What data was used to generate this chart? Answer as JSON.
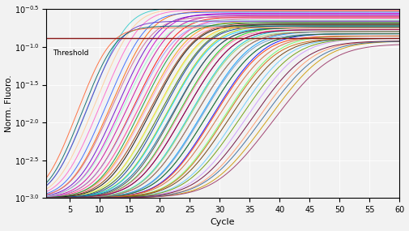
{
  "xlabel": "Cycle",
  "ylabel": "Norm. Fluoro.",
  "xlim": [
    1,
    60
  ],
  "ylim": [
    0.001,
    0.316
  ],
  "x_ticks": [
    5,
    10,
    15,
    20,
    25,
    30,
    35,
    40,
    45,
    50,
    55,
    60
  ],
  "y_ticks_exp": [
    -3.0,
    -2.5,
    -2.0,
    -1.5,
    -1.0,
    -0.5
  ],
  "threshold_value": 0.13,
  "threshold_color": "#8B1A1A",
  "threshold_label": "Threshold",
  "background_color": "#f2f2f2",
  "grid_color": "#ffffff",
  "colors": [
    "#cc00cc",
    "#ff0000",
    "#ff6600",
    "#ff9900",
    "#ffcc00",
    "#99cc00",
    "#00cc00",
    "#00cccc",
    "#0099ff",
    "#0000ff",
    "#6600cc",
    "#cc0099",
    "#ff3399",
    "#993300",
    "#336600",
    "#006699",
    "#660099",
    "#cc3300",
    "#009966",
    "#3366ff",
    "#ff66cc",
    "#66ff66",
    "#66ccff",
    "#ffcc99",
    "#cc99ff",
    "#ff9966",
    "#99ffcc",
    "#9999ff",
    "#ff99cc",
    "#ccff99",
    "#00ccff",
    "#ff6699",
    "#99cc66",
    "#6699cc",
    "#cc6699",
    "#ff3300",
    "#33cccc",
    "#cc6600",
    "#6633cc",
    "#cc9900",
    "#009933",
    "#003399",
    "#990033",
    "#336633",
    "#663300",
    "#000000",
    "#444444",
    "#888888",
    "#cc6633",
    "#669900",
    "#006666",
    "#660033",
    "#336699",
    "#993366",
    "#ff6633"
  ],
  "curve_groups": [
    {
      "ct": 20,
      "plateau": 0.28,
      "base": 0.001,
      "slope": 0.45,
      "color_idx": 0
    },
    {
      "ct": 22,
      "plateau": 0.25,
      "base": 0.001,
      "slope": 0.43,
      "color_idx": 1
    },
    {
      "ct": 18,
      "plateau": 0.3,
      "base": 0.001,
      "slope": 0.47,
      "color_idx": 2
    },
    {
      "ct": 24,
      "plateau": 0.22,
      "base": 0.001,
      "slope": 0.41,
      "color_idx": 3
    },
    {
      "ct": 26,
      "plateau": 0.2,
      "base": 0.001,
      "slope": 0.4,
      "color_idx": 4
    },
    {
      "ct": 28,
      "plateau": 0.19,
      "base": 0.001,
      "slope": 0.39,
      "color_idx": 5
    },
    {
      "ct": 30,
      "plateau": 0.18,
      "base": 0.001,
      "slope": 0.38,
      "color_idx": 6
    },
    {
      "ct": 32,
      "plateau": 0.17,
      "base": 0.001,
      "slope": 0.37,
      "color_idx": 7
    },
    {
      "ct": 34,
      "plateau": 0.16,
      "base": 0.001,
      "slope": 0.36,
      "color_idx": 8
    },
    {
      "ct": 36,
      "plateau": 0.15,
      "base": 0.001,
      "slope": 0.35,
      "color_idx": 9
    },
    {
      "ct": 19,
      "plateau": 0.27,
      "base": 0.001,
      "slope": 0.46,
      "color_idx": 10
    },
    {
      "ct": 21,
      "plateau": 0.26,
      "base": 0.001,
      "slope": 0.44,
      "color_idx": 11
    },
    {
      "ct": 23,
      "plateau": 0.24,
      "base": 0.001,
      "slope": 0.42,
      "color_idx": 12
    },
    {
      "ct": 25,
      "plateau": 0.21,
      "base": 0.001,
      "slope": 0.4,
      "color_idx": 13
    },
    {
      "ct": 27,
      "plateau": 0.2,
      "base": 0.001,
      "slope": 0.39,
      "color_idx": 14
    },
    {
      "ct": 29,
      "plateau": 0.18,
      "base": 0.001,
      "slope": 0.38,
      "color_idx": 15
    },
    {
      "ct": 31,
      "plateau": 0.17,
      "base": 0.001,
      "slope": 0.37,
      "color_idx": 16
    },
    {
      "ct": 33,
      "plateau": 0.16,
      "base": 0.001,
      "slope": 0.36,
      "color_idx": 17
    },
    {
      "ct": 35,
      "plateau": 0.15,
      "base": 0.001,
      "slope": 0.35,
      "color_idx": 18
    },
    {
      "ct": 17,
      "plateau": 0.29,
      "base": 0.001,
      "slope": 0.48,
      "color_idx": 19
    },
    {
      "ct": 16,
      "plateau": 0.31,
      "base": 0.001,
      "slope": 0.49,
      "color_idx": 20
    },
    {
      "ct": 38,
      "plateau": 0.14,
      "base": 0.001,
      "slope": 0.34,
      "color_idx": 21
    },
    {
      "ct": 40,
      "plateau": 0.13,
      "base": 0.001,
      "slope": 0.33,
      "color_idx": 22
    },
    {
      "ct": 15,
      "plateau": 0.32,
      "base": 0.001,
      "slope": 0.5,
      "color_idx": 23
    },
    {
      "ct": 42,
      "plateau": 0.13,
      "base": 0.001,
      "slope": 0.32,
      "color_idx": 24
    },
    {
      "ct": 44,
      "plateau": 0.12,
      "base": 0.001,
      "slope": 0.31,
      "color_idx": 25
    },
    {
      "ct": 20,
      "plateau": 0.23,
      "base": 0.001,
      "slope": 0.44,
      "color_idx": 26
    },
    {
      "ct": 22,
      "plateau": 0.22,
      "base": 0.001,
      "slope": 0.42,
      "color_idx": 27
    },
    {
      "ct": 24,
      "plateau": 0.2,
      "base": 0.001,
      "slope": 0.41,
      "color_idx": 28
    },
    {
      "ct": 26,
      "plateau": 0.19,
      "base": 0.001,
      "slope": 0.4,
      "color_idx": 29
    },
    {
      "ct": 28,
      "plateau": 0.18,
      "base": 0.001,
      "slope": 0.39,
      "color_idx": 30
    },
    {
      "ct": 30,
      "plateau": 0.17,
      "base": 0.001,
      "slope": 0.38,
      "color_idx": 31
    },
    {
      "ct": 32,
      "plateau": 0.16,
      "base": 0.001,
      "slope": 0.37,
      "color_idx": 32
    },
    {
      "ct": 34,
      "plateau": 0.15,
      "base": 0.001,
      "slope": 0.36,
      "color_idx": 33
    },
    {
      "ct": 18,
      "plateau": 0.25,
      "base": 0.001,
      "slope": 0.46,
      "color_idx": 34
    },
    {
      "ct": 36,
      "plateau": 0.14,
      "base": 0.001,
      "slope": 0.35,
      "color_idx": 35
    },
    {
      "ct": 14,
      "plateau": 0.33,
      "base": 0.001,
      "slope": 0.51,
      "color_idx": 36
    },
    {
      "ct": 38,
      "plateau": 0.13,
      "base": 0.001,
      "slope": 0.34,
      "color_idx": 37
    },
    {
      "ct": 13,
      "plateau": 0.22,
      "base": 0.001,
      "slope": 0.52,
      "color_idx": 38
    },
    {
      "ct": 46,
      "plateau": 0.12,
      "base": 0.001,
      "slope": 0.3,
      "color_idx": 39
    },
    {
      "ct": 23,
      "plateau": 0.21,
      "base": 0.001,
      "slope": 0.43,
      "color_idx": 40
    },
    {
      "ct": 27,
      "plateau": 0.19,
      "base": 0.001,
      "slope": 0.4,
      "color_idx": 41
    },
    {
      "ct": 31,
      "plateau": 0.17,
      "base": 0.001,
      "slope": 0.37,
      "color_idx": 42
    },
    {
      "ct": 35,
      "plateau": 0.15,
      "base": 0.001,
      "slope": 0.35,
      "color_idx": 43
    },
    {
      "ct": 39,
      "plateau": 0.13,
      "base": 0.001,
      "slope": 0.33,
      "color_idx": 44
    },
    {
      "ct": 25,
      "plateau": 0.2,
      "base": 0.001,
      "slope": 0.41,
      "color_idx": 45
    },
    {
      "ct": 29,
      "plateau": 0.18,
      "base": 0.001,
      "slope": 0.39,
      "color_idx": 46
    },
    {
      "ct": 33,
      "plateau": 0.16,
      "base": 0.001,
      "slope": 0.36,
      "color_idx": 47
    },
    {
      "ct": 37,
      "plateau": 0.14,
      "base": 0.001,
      "slope": 0.34,
      "color_idx": 48
    },
    {
      "ct": 41,
      "plateau": 0.13,
      "base": 0.001,
      "slope": 0.32,
      "color_idx": 49
    },
    {
      "ct": 12,
      "plateau": 0.19,
      "base": 0.001,
      "slope": 0.53,
      "color_idx": 50
    },
    {
      "ct": 43,
      "plateau": 0.12,
      "base": 0.001,
      "slope": 0.31,
      "color_idx": 51
    },
    {
      "ct": 45,
      "plateau": 0.12,
      "base": 0.001,
      "slope": 0.3,
      "color_idx": 52
    },
    {
      "ct": 47,
      "plateau": 0.11,
      "base": 0.001,
      "slope": 0.29,
      "color_idx": 53
    },
    {
      "ct": 11,
      "plateau": 0.18,
      "base": 0.001,
      "slope": 0.54,
      "color_idx": 54
    }
  ]
}
